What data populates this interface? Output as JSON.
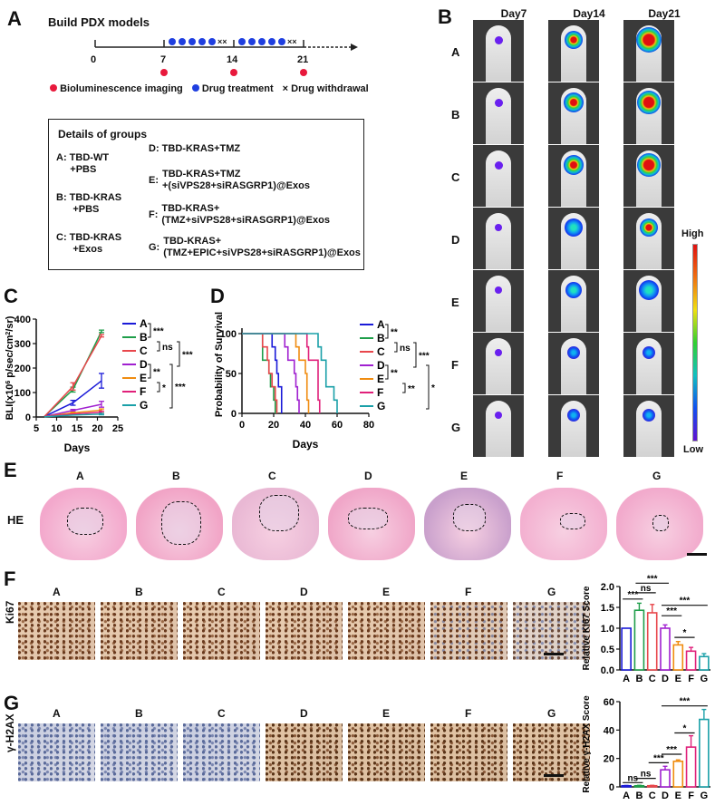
{
  "panelA": {
    "label": "A",
    "title": "Build PDX models",
    "timeline_ticks": [
      "0",
      "7",
      "14",
      "21"
    ],
    "legend": {
      "imaging": "Bioluminescence imaging",
      "treatment": "Drug treatment",
      "withdrawal": "Drug withdrawal",
      "withdrawal_symbol": "×"
    },
    "colors": {
      "imaging": "#e8193c",
      "treatment": "#1f3fe0"
    },
    "groups_box": {
      "title": "Details of groups",
      "left": [
        {
          "key": "A:",
          "line1": "TBD-WT",
          "line2": "+PBS"
        },
        {
          "key": "B:",
          "line1": "TBD-KRAS",
          "line2": "+PBS"
        },
        {
          "key": "C:",
          "line1": "TBD-KRAS",
          "line2": "+Exos"
        }
      ],
      "right": [
        {
          "key": "D:",
          "line1": "TBD-KRAS+TMZ",
          "line2": ""
        },
        {
          "key": "E:",
          "line1": "TBD-KRAS+TMZ",
          "line2": "+(siVPS28+siRASGRP1)@Exos"
        },
        {
          "key": "F:",
          "line1": "TBD-KRAS+",
          "line2": "(TMZ+siVPS28+siRASGRP1)@Exos"
        },
        {
          "key": "G:",
          "line1": "TBD-KRAS+",
          "line2": "(TMZ+EPIC+siVPS28+siRASGRP1)@Exos"
        }
      ]
    }
  },
  "panelB": {
    "label": "B",
    "columns": [
      "Day7",
      "Day14",
      "Day21"
    ],
    "rows": [
      "A",
      "B",
      "C",
      "D",
      "E",
      "F",
      "G"
    ],
    "colorbar": {
      "high": "High",
      "low": "Low"
    }
  },
  "panelE": {
    "label": "E",
    "row_label": "HE",
    "columns": [
      "A",
      "B",
      "C",
      "D",
      "E",
      "F",
      "G"
    ]
  },
  "panelF": {
    "label": "F",
    "row_label": "Ki67",
    "columns": [
      "A",
      "B",
      "C",
      "D",
      "E",
      "F",
      "G"
    ]
  },
  "panelG": {
    "label": "G",
    "row_label": "γ-H2AX",
    "columns": [
      "A",
      "B",
      "C",
      "D",
      "E",
      "F",
      "G"
    ]
  },
  "series_colors": {
    "A": "#1a1ad8",
    "B": "#1f9e4a",
    "C": "#e8474c",
    "D": "#a020d0",
    "E": "#f08c10",
    "F": "#e0207a",
    "G": "#1aa0a8"
  },
  "chart_data": [
    {
      "id": "C",
      "type": "line",
      "title": "",
      "xlabel": "Days",
      "ylabel": "BLI(x10^6 p/sec/cm^2/sr)",
      "xlim": [
        5,
        25
      ],
      "ylim": [
        0,
        400
      ],
      "xticks": [
        5,
        10,
        15,
        20,
        25
      ],
      "yticks": [
        0,
        100,
        200,
        300,
        400
      ],
      "x": [
        7,
        14,
        21
      ],
      "series": [
        {
          "name": "A",
          "values": [
            2,
            58,
            148
          ],
          "err": [
            1,
            10,
            30
          ]
        },
        {
          "name": "B",
          "values": [
            2,
            112,
            350
          ],
          "err": [
            1,
            10,
            5
          ]
        },
        {
          "name": "C",
          "values": [
            2,
            125,
            332
          ],
          "err": [
            1,
            15,
            5
          ]
        },
        {
          "name": "D",
          "values": [
            2,
            27,
            52
          ],
          "err": [
            1,
            4,
            12
          ]
        },
        {
          "name": "E",
          "values": [
            2,
            17,
            28
          ],
          "err": [
            1,
            3,
            5
          ]
        },
        {
          "name": "F",
          "values": [
            2,
            12,
            20
          ],
          "err": [
            1,
            2,
            4
          ]
        },
        {
          "name": "G",
          "values": [
            1,
            8,
            12
          ],
          "err": [
            1,
            2,
            3
          ]
        }
      ],
      "legend_position": "right",
      "significance": [
        {
          "groups": [
            "A",
            "B"
          ],
          "label": "***"
        },
        {
          "groups": [
            "B",
            "C"
          ],
          "label": "ns"
        },
        {
          "groups": [
            "A",
            "C"
          ],
          "label": "***"
        },
        {
          "groups": [
            "D",
            "E"
          ],
          "label": "**"
        },
        {
          "groups": [
            "E",
            "F"
          ],
          "label": "*"
        },
        {
          "groups": [
            "D",
            "G"
          ],
          "label": "***"
        }
      ]
    },
    {
      "id": "D",
      "type": "line",
      "subtype": "kaplan-meier",
      "xlabel": "Days",
      "ylabel": "Probability of Survival",
      "xlim": [
        0,
        80
      ],
      "ylim": [
        0,
        100
      ],
      "xticks": [
        0,
        20,
        40,
        60,
        80
      ],
      "yticks": [
        0,
        50,
        100
      ],
      "series": [
        {
          "name": "A",
          "steps": [
            [
              0,
              100
            ],
            [
              19,
              100
            ],
            [
              19,
              83.3
            ],
            [
              21,
              83.3
            ],
            [
              21,
              66.7
            ],
            [
              22,
              66.7
            ],
            [
              22,
              50
            ],
            [
              23,
              50
            ],
            [
              23,
              33.3
            ],
            [
              25,
              33.3
            ],
            [
              25,
              0
            ]
          ]
        },
        {
          "name": "B",
          "steps": [
            [
              0,
              100
            ],
            [
              13,
              100
            ],
            [
              13,
              66.7
            ],
            [
              17,
              66.7
            ],
            [
              17,
              50
            ],
            [
              18,
              50
            ],
            [
              18,
              33.3
            ],
            [
              20,
              33.3
            ],
            [
              20,
              16.7
            ],
            [
              21,
              16.7
            ],
            [
              21,
              0
            ]
          ]
        },
        {
          "name": "C",
          "steps": [
            [
              0,
              100
            ],
            [
              13,
              100
            ],
            [
              13,
              83.3
            ],
            [
              16,
              83.3
            ],
            [
              16,
              66.7
            ],
            [
              17,
              66.7
            ],
            [
              17,
              50
            ],
            [
              19,
              50
            ],
            [
              19,
              33.3
            ],
            [
              21,
              33.3
            ],
            [
              21,
              16.7
            ],
            [
              22,
              16.7
            ],
            [
              22,
              0
            ]
          ]
        },
        {
          "name": "D",
          "steps": [
            [
              0,
              100
            ],
            [
              27,
              100
            ],
            [
              27,
              83.3
            ],
            [
              29,
              83.3
            ],
            [
              29,
              66.7
            ],
            [
              33,
              66.7
            ],
            [
              33,
              50
            ],
            [
              34,
              50
            ],
            [
              34,
              33.3
            ],
            [
              35,
              33.3
            ],
            [
              35,
              16.7
            ],
            [
              36,
              16.7
            ],
            [
              36,
              0
            ]
          ]
        },
        {
          "name": "E",
          "steps": [
            [
              0,
              100
            ],
            [
              34,
              100
            ],
            [
              34,
              83.3
            ],
            [
              36,
              83.3
            ],
            [
              36,
              66.7
            ],
            [
              40,
              66.7
            ],
            [
              40,
              50
            ],
            [
              41,
              50
            ],
            [
              41,
              16.7
            ],
            [
              42,
              16.7
            ],
            [
              42,
              0
            ]
          ]
        },
        {
          "name": "F",
          "steps": [
            [
              0,
              100
            ],
            [
              41,
              100
            ],
            [
              41,
              83.3
            ],
            [
              42,
              83.3
            ],
            [
              42,
              66.7
            ],
            [
              48,
              66.7
            ],
            [
              48,
              16.7
            ],
            [
              49,
              16.7
            ],
            [
              49,
              0
            ]
          ]
        },
        {
          "name": "G",
          "steps": [
            [
              0,
              100
            ],
            [
              48,
              100
            ],
            [
              48,
              83.3
            ],
            [
              50,
              83.3
            ],
            [
              50,
              66.7
            ],
            [
              53,
              66.7
            ],
            [
              53,
              33.3
            ],
            [
              58,
              33.3
            ],
            [
              58,
              16.7
            ],
            [
              60,
              16.7
            ],
            [
              60,
              0
            ]
          ]
        }
      ],
      "legend_position": "right",
      "significance": [
        {
          "groups": [
            "A",
            "B"
          ],
          "label": "**"
        },
        {
          "groups": [
            "B",
            "C"
          ],
          "label": "ns"
        },
        {
          "groups": [
            "A",
            "C"
          ],
          "label": "***"
        },
        {
          "groups": [
            "D",
            "E"
          ],
          "label": "**"
        },
        {
          "groups": [
            "E",
            "F"
          ],
          "label": "**"
        },
        {
          "groups": [
            "D",
            "G"
          ],
          "label": "***"
        }
      ]
    },
    {
      "id": "F",
      "type": "bar",
      "ylabel": "Relative Ki67 Score",
      "categories": [
        "A",
        "B",
        "C",
        "D",
        "E",
        "F",
        "G"
      ],
      "values": [
        1.0,
        1.43,
        1.37,
        1.0,
        0.6,
        0.45,
        0.32
      ],
      "err": [
        0.0,
        0.17,
        0.2,
        0.08,
        0.08,
        0.09,
        0.07
      ],
      "ylim": [
        0,
        2.0
      ],
      "yticks": [
        "0.0",
        "0.5",
        "1.0",
        "1.5",
        "2.0"
      ],
      "significance": [
        {
          "from": "A",
          "to": "B",
          "label": "***",
          "y": 1.7
        },
        {
          "from": "B",
          "to": "C",
          "label": "ns",
          "y": 1.85
        },
        {
          "from": "B",
          "to": "D",
          "label": "***",
          "y": 2.08
        },
        {
          "from": "D",
          "to": "E",
          "label": "***",
          "y": 1.3
        },
        {
          "from": "D",
          "to": "G",
          "label": "***",
          "y": 1.55
        },
        {
          "from": "E",
          "to": "F",
          "label": "*",
          "y": 0.78
        }
      ]
    },
    {
      "id": "G",
      "type": "bar",
      "ylabel": "Relative γ-H2AX Score",
      "categories": [
        "A",
        "B",
        "C",
        "D",
        "E",
        "F",
        "G"
      ],
      "values": [
        0.8,
        0.8,
        0.8,
        12,
        18,
        28,
        47.5
      ],
      "err": [
        0.2,
        0.3,
        0.3,
        2.5,
        1,
        8,
        7
      ],
      "ylim": [
        0,
        60
      ],
      "yticks": [
        "0",
        "20",
        "40",
        "60"
      ],
      "significance": [
        {
          "from": "A",
          "to": "B",
          "label": "ns",
          "y": 3
        },
        {
          "from": "B",
          "to": "C",
          "label": "ns",
          "y": 6
        },
        {
          "from": "C",
          "to": "D",
          "label": "***",
          "y": 17
        },
        {
          "from": "D",
          "to": "E",
          "label": "***",
          "y": 23
        },
        {
          "from": "E",
          "to": "F",
          "label": "*",
          "y": 38
        },
        {
          "from": "D",
          "to": "G",
          "label": "***",
          "y": 57
        }
      ]
    }
  ]
}
